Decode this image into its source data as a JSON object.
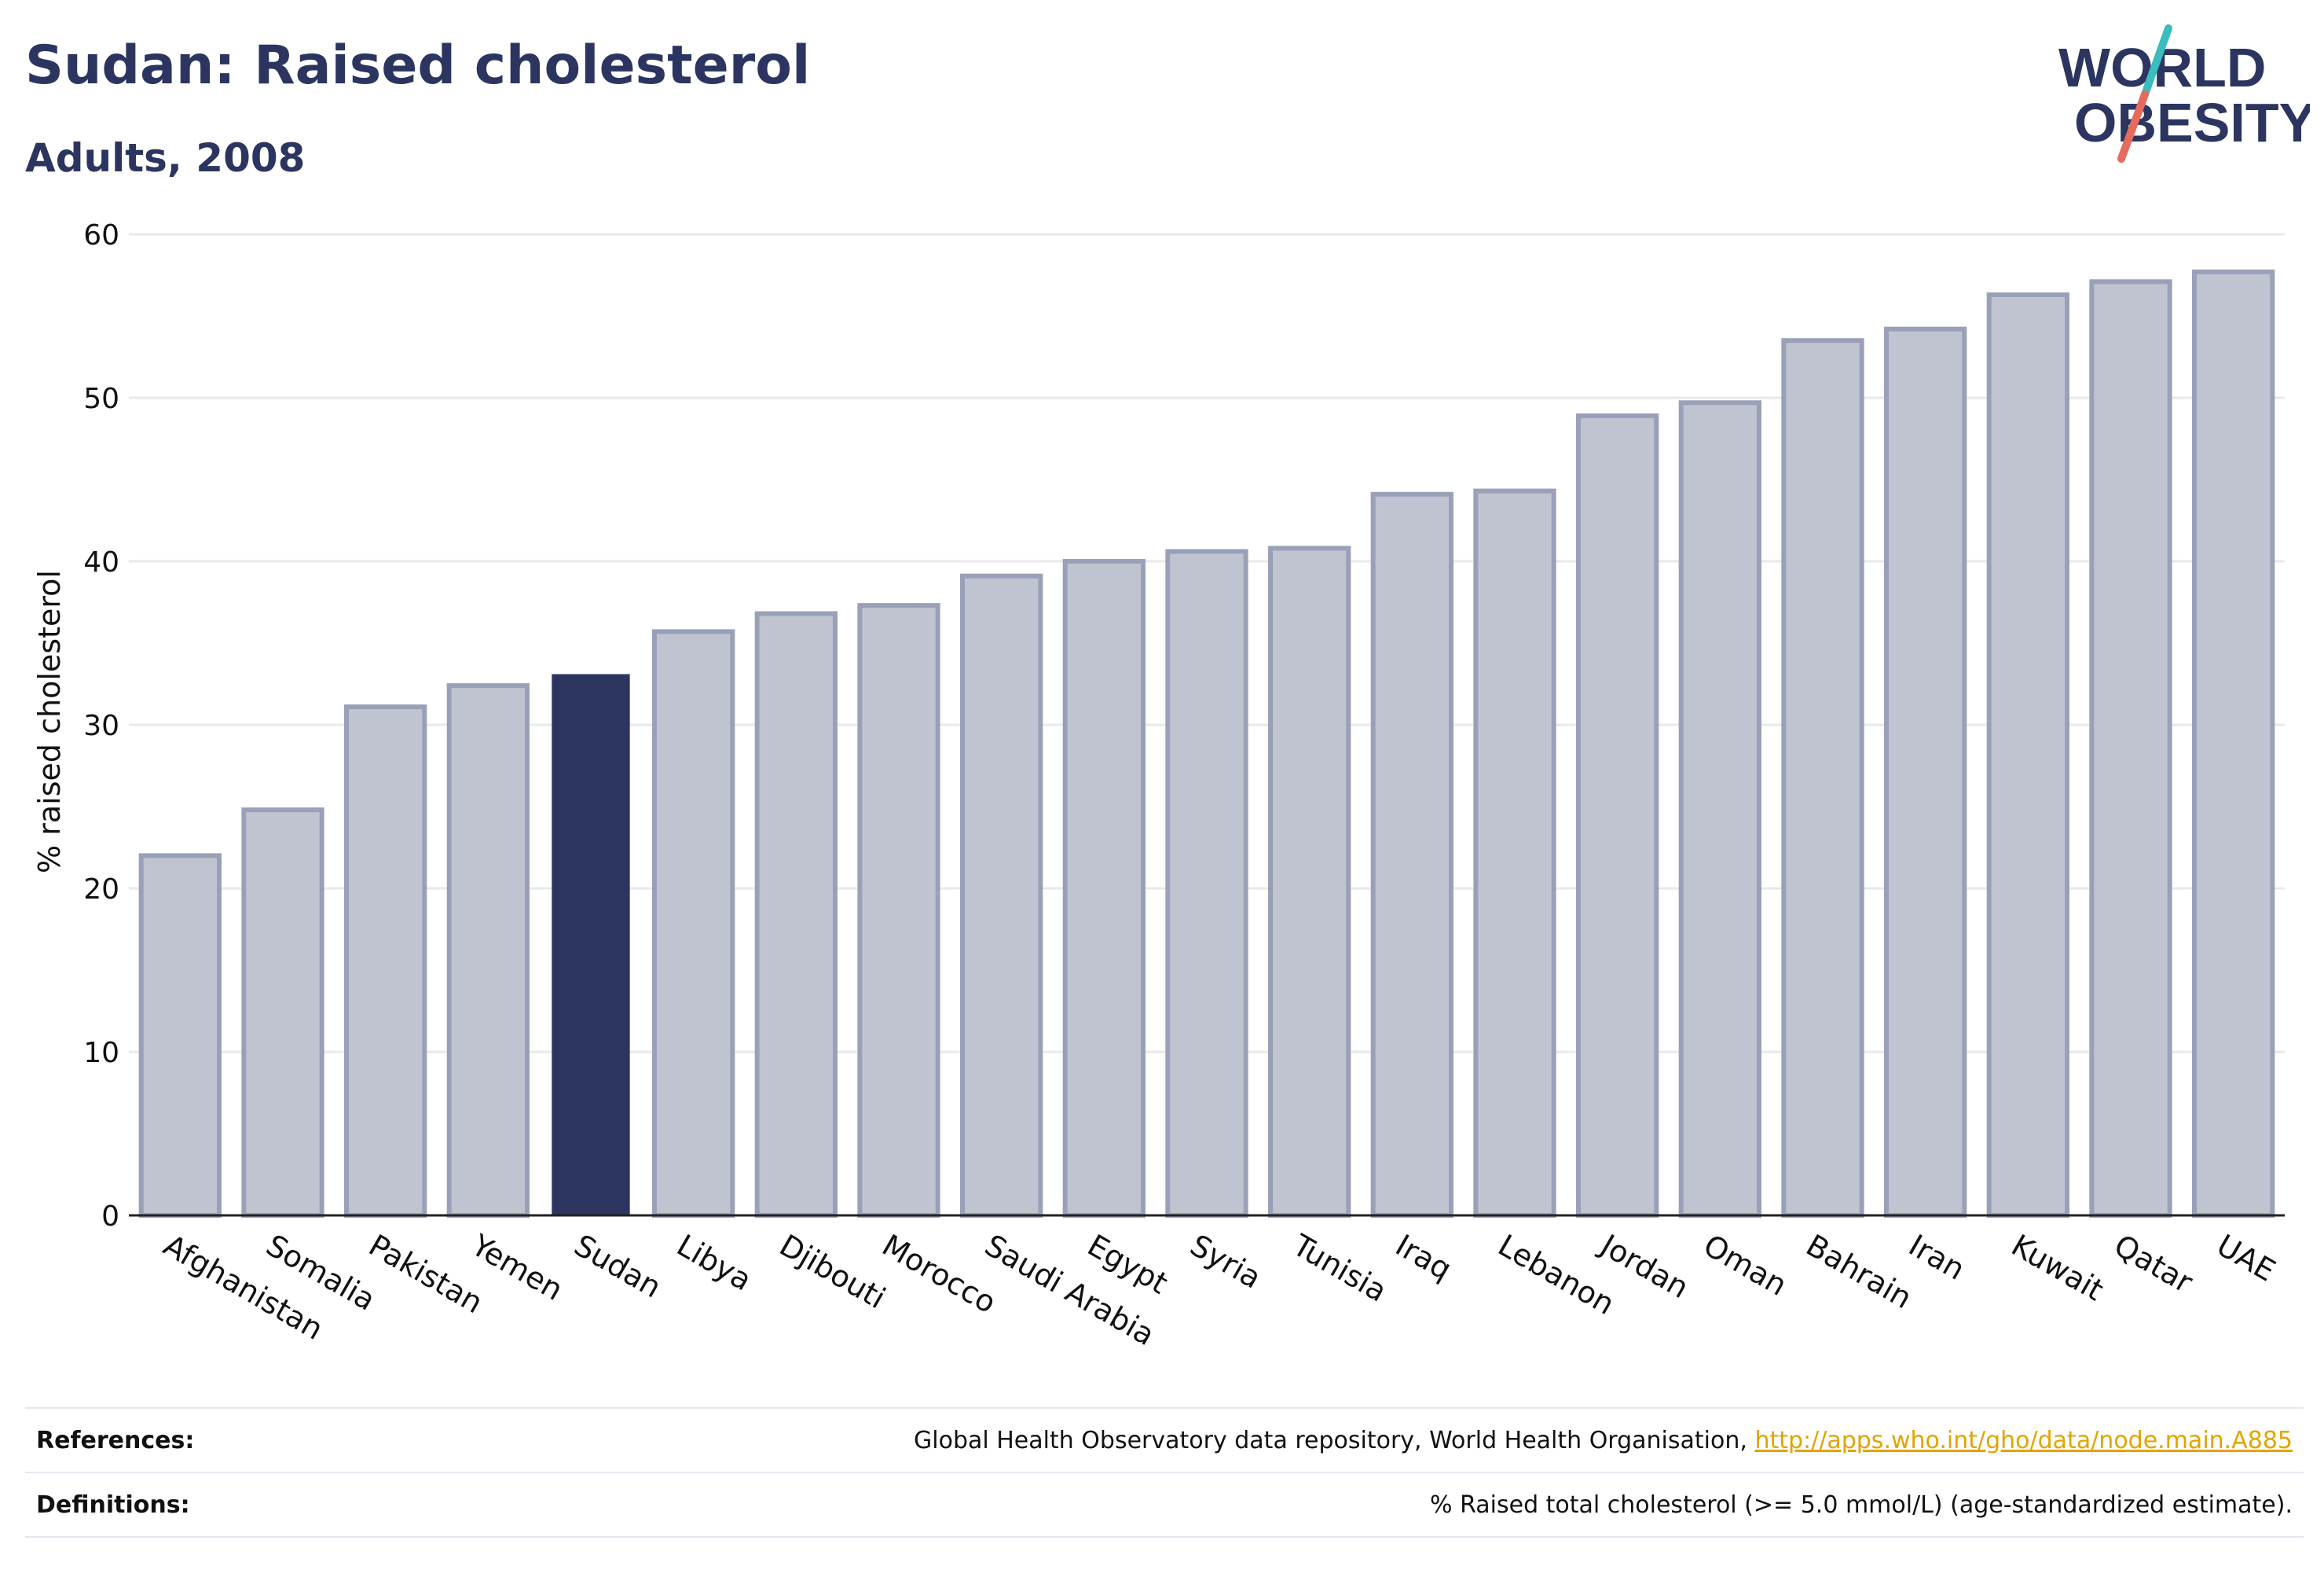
{
  "header": {
    "title": "Sudan: Raised cholesterol",
    "subtitle": "Adults, 2008"
  },
  "logo": {
    "line1": "WORLD",
    "line2": "OBESITY",
    "colors": {
      "text": "#2b3560",
      "slash_top": "#3bbcbf",
      "slash_bottom": "#e56b5d"
    }
  },
  "colors": {
    "highlight": "#2b3560",
    "bar_fill": "#c0c4d0",
    "bar_stroke": "#9aa0b8",
    "grid": "#e8e9ee",
    "axis": "#222222"
  },
  "chart_data": {
    "type": "bar",
    "title": "",
    "xlabel": "",
    "ylabel": "% raised cholesterol",
    "ylim": [
      0,
      60
    ],
    "yticks": [
      0,
      10,
      20,
      30,
      40,
      50,
      60
    ],
    "grid": true,
    "highlight": "Sudan",
    "categories": [
      "Afghanistan",
      "Somalia",
      "Pakistan",
      "Yemen",
      "Sudan",
      "Libya",
      "Djibouti",
      "Morocco",
      "Saudi Arabia",
      "Egypt",
      "Syria",
      "Tunisia",
      "Iraq",
      "Lebanon",
      "Jordan",
      "Oman",
      "Bahrain",
      "Iran",
      "Kuwait",
      "Qatar",
      "UAE"
    ],
    "values": [
      22.0,
      24.8,
      31.1,
      32.4,
      33.1,
      35.7,
      36.8,
      37.3,
      39.1,
      40.0,
      40.6,
      40.8,
      44.1,
      44.3,
      48.9,
      49.7,
      53.5,
      54.2,
      56.3,
      57.1,
      57.7
    ]
  },
  "references": {
    "label": "References:",
    "text": "Global Health Observatory data repository, World Health Organisation, ",
    "link": "http://apps.who.int/gho/data/node.main.A885"
  },
  "definitions": {
    "label": "Definitions:",
    "text": "% Raised total cholesterol (>= 5.0 mmol/L) (age-standardized estimate)."
  }
}
